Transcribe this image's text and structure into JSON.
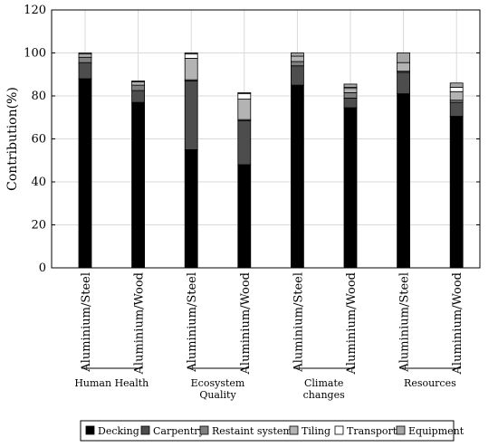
{
  "chart_data": {
    "type": "bar",
    "stacked": true,
    "ylabel": "Contribution(%)",
    "ylim": [
      0,
      120
    ],
    "yticks": [
      0,
      20,
      40,
      60,
      80,
      100,
      120
    ],
    "grid": true,
    "legend_position": "bottom",
    "categories": [
      "Aluminium/Steel",
      "Aluminium/Wood",
      "Aluminium/Steel",
      "Aluminium/Wood",
      "Aluminium/Steel",
      "Aluminium/Wood",
      "Aluminium/Steel",
      "Aluminium/Wood"
    ],
    "groups": [
      {
        "label_lines": [
          "Human Health"
        ]
      },
      {
        "label_lines": [
          "Ecosystem",
          "Quality"
        ]
      },
      {
        "label_lines": [
          "Climate",
          "changes"
        ]
      },
      {
        "label_lines": [
          "Resources"
        ]
      }
    ],
    "series": [
      {
        "name": "Decking",
        "color": "#000000",
        "values": [
          88,
          77,
          55,
          48,
          85,
          74.5,
          81,
          70.5
        ]
      },
      {
        "name": "Carpentry",
        "color": "#4d4d4d",
        "values": [
          7.5,
          5.5,
          32,
          20.5,
          9,
          4.5,
          10,
          6.5
        ]
      },
      {
        "name": "Restaint system",
        "color": "#7f7f7f",
        "values": [
          2.5,
          2.5,
          0.5,
          0.5,
          2,
          2.5,
          0.5,
          1
        ]
      },
      {
        "name": "Tiling",
        "color": "#b3b3b3",
        "values": [
          1.5,
          1.5,
          10,
          9.5,
          2.5,
          2,
          4,
          4
        ]
      },
      {
        "name": "Transport",
        "color": "#ffffff",
        "values": [
          0,
          0,
          2,
          2.5,
          0,
          0.5,
          0,
          2
        ]
      },
      {
        "name": "Equipment",
        "color": "#a6a6a6",
        "values": [
          0.5,
          0.5,
          0.5,
          0.5,
          1.5,
          1.5,
          4.5,
          2
        ]
      }
    ]
  }
}
